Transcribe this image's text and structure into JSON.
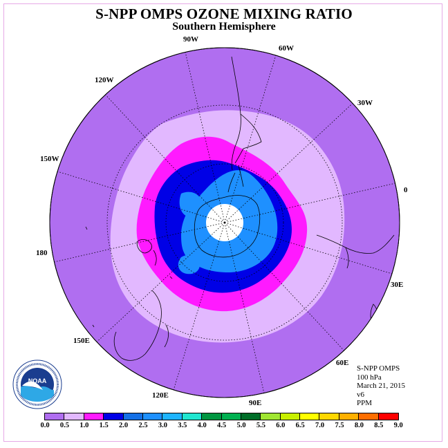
{
  "title": "S-NPP OMPS OZONE MIXING RATIO",
  "subtitle": "Southern Hemisphere",
  "longitude_labels": [
    "90W",
    "60W",
    "30W",
    "0",
    "30E",
    "60E",
    "90E",
    "120E",
    "150E",
    "180",
    "150W",
    "120W"
  ],
  "info": {
    "instrument": "S-NPP OMPS",
    "level": "100 hPa",
    "date": "March 21, 2015",
    "version": "v6",
    "units": "PPM"
  },
  "colorbar": {
    "ticks": [
      "0.0",
      "0.5",
      "1.0",
      "1.5",
      "2.0",
      "2.5",
      "3.0",
      "3.5",
      "4.0",
      "4.5",
      "5.0",
      "5.5",
      "6.0",
      "6.5",
      "7.0",
      "7.5",
      "8.0",
      "8.5",
      "9.0"
    ],
    "colors": [
      "#b06ef0",
      "#e2b8ff",
      "#ff1aff",
      "#0000e6",
      "#1470e6",
      "#1e90ff",
      "#1eb4ff",
      "#20e6d0",
      "#009640",
      "#00b050",
      "#006e28",
      "#a0e632",
      "#c8f000",
      "#ffff00",
      "#ffd700",
      "#ffb000",
      "#ff6e00",
      "#ff0000"
    ]
  },
  "map_colors": {
    "outer": "#b06ef0",
    "band_0_5": "#e2b8ff",
    "band_1_0": "#ff1aff",
    "band_1_5": "#0000e6",
    "band_2_0": "#1e90ff",
    "band_2_5": "#1e90ff",
    "pole": "#ffffff"
  },
  "logo": {
    "text": "NOAA",
    "ring_text": "NATIONAL OCEANIC AND ATMOSPHERIC ADMINISTRATION · U.S. DEPARTMENT OF COMMERCE"
  }
}
